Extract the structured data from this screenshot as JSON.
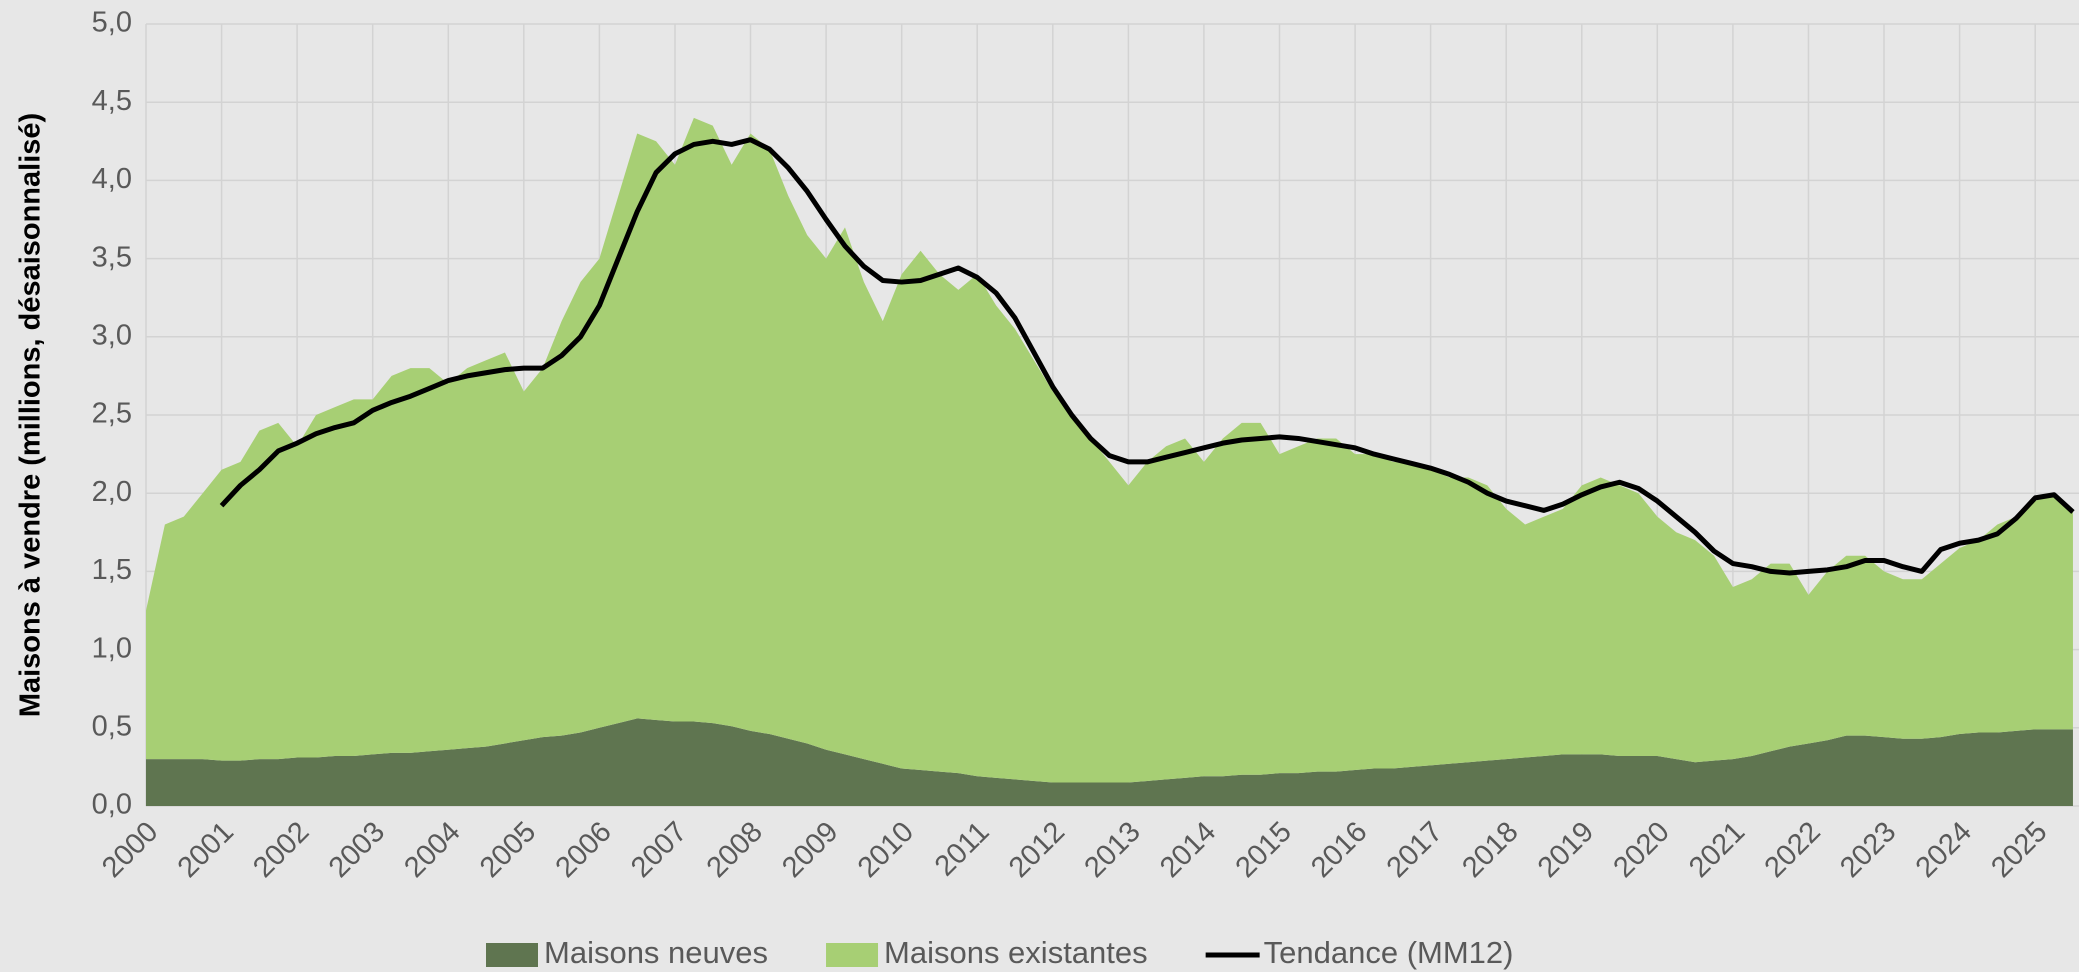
{
  "chart_data": {
    "type": "area",
    "stacked": true,
    "ylabel": "Maisons à vendre (millions, désaisonnalisé)",
    "x": [
      2000,
      2000.25,
      2000.5,
      2000.75,
      2001,
      2001.25,
      2001.5,
      2001.75,
      2002,
      2002.25,
      2002.5,
      2002.75,
      2003,
      2003.25,
      2003.5,
      2003.75,
      2004,
      2004.25,
      2004.5,
      2004.75,
      2005,
      2005.25,
      2005.5,
      2005.75,
      2006,
      2006.25,
      2006.5,
      2006.75,
      2007,
      2007.25,
      2007.5,
      2007.75,
      2008,
      2008.25,
      2008.5,
      2008.75,
      2009,
      2009.25,
      2009.5,
      2009.75,
      2010,
      2010.25,
      2010.5,
      2010.75,
      2011,
      2011.25,
      2011.5,
      2011.75,
      2012,
      2012.25,
      2012.5,
      2012.75,
      2013,
      2013.25,
      2013.5,
      2013.75,
      2014,
      2014.25,
      2014.5,
      2014.75,
      2015,
      2015.25,
      2015.5,
      2015.75,
      2016,
      2016.25,
      2016.5,
      2016.75,
      2017,
      2017.25,
      2017.5,
      2017.75,
      2018,
      2018.25,
      2018.5,
      2018.75,
      2019,
      2019.25,
      2019.5,
      2019.75,
      2020,
      2020.25,
      2020.5,
      2020.75,
      2021,
      2021.25,
      2021.5,
      2021.75,
      2022,
      2022.25,
      2022.5,
      2022.75,
      2023,
      2023.25,
      2023.5,
      2023.75,
      2024,
      2024.25,
      2024.5,
      2024.75,
      2025,
      2025.25,
      2025.5
    ],
    "series": [
      {
        "name": "Maisons neuves",
        "color": "#5f7550",
        "values": [
          0.3,
          0.3,
          0.3,
          0.3,
          0.29,
          0.29,
          0.3,
          0.3,
          0.31,
          0.31,
          0.32,
          0.32,
          0.33,
          0.34,
          0.34,
          0.35,
          0.36,
          0.37,
          0.38,
          0.4,
          0.42,
          0.44,
          0.45,
          0.47,
          0.5,
          0.53,
          0.56,
          0.55,
          0.54,
          0.54,
          0.53,
          0.51,
          0.48,
          0.46,
          0.43,
          0.4,
          0.36,
          0.33,
          0.3,
          0.27,
          0.24,
          0.23,
          0.22,
          0.21,
          0.19,
          0.18,
          0.17,
          0.16,
          0.15,
          0.15,
          0.15,
          0.15,
          0.15,
          0.16,
          0.17,
          0.18,
          0.19,
          0.19,
          0.2,
          0.2,
          0.21,
          0.21,
          0.22,
          0.22,
          0.23,
          0.24,
          0.24,
          0.25,
          0.26,
          0.27,
          0.28,
          0.29,
          0.3,
          0.31,
          0.32,
          0.33,
          0.33,
          0.33,
          0.32,
          0.32,
          0.32,
          0.3,
          0.28,
          0.29,
          0.3,
          0.32,
          0.35,
          0.38,
          0.4,
          0.42,
          0.45,
          0.45,
          0.44,
          0.43,
          0.43,
          0.44,
          0.46,
          0.47,
          0.47,
          0.48,
          0.49,
          0.49,
          0.49
        ]
      },
      {
        "name": "Maisons existantes",
        "color": "#a7cf74",
        "values": [
          0.95,
          1.5,
          1.55,
          1.7,
          1.86,
          1.91,
          2.1,
          2.15,
          1.99,
          2.19,
          2.23,
          2.28,
          2.27,
          2.41,
          2.46,
          2.45,
          2.34,
          2.43,
          2.47,
          2.5,
          2.23,
          2.36,
          2.65,
          2.88,
          3.0,
          3.37,
          3.74,
          3.7,
          3.56,
          3.86,
          3.82,
          3.59,
          3.82,
          3.74,
          3.47,
          3.25,
          3.14,
          3.37,
          3.05,
          2.83,
          3.16,
          3.32,
          3.18,
          3.09,
          3.21,
          3.02,
          2.88,
          2.69,
          2.5,
          2.35,
          2.2,
          2.05,
          1.9,
          2.04,
          2.13,
          2.17,
          2.01,
          2.16,
          2.25,
          2.25,
          2.04,
          2.09,
          2.13,
          2.13,
          2.02,
          2.01,
          1.96,
          1.95,
          1.89,
          1.83,
          1.82,
          1.76,
          1.6,
          1.49,
          1.53,
          1.57,
          1.72,
          1.77,
          1.73,
          1.68,
          1.53,
          1.45,
          1.42,
          1.31,
          1.1,
          1.13,
          1.2,
          1.17,
          0.95,
          1.08,
          1.15,
          1.15,
          1.06,
          1.02,
          1.02,
          1.11,
          1.19,
          1.23,
          1.33,
          1.37,
          1.46,
          1.51,
          1.41
        ]
      },
      {
        "name": "Tendance (MM12)",
        "color": "#000000",
        "type": "line",
        "values": [
          null,
          null,
          null,
          null,
          1.92,
          2.05,
          2.15,
          2.27,
          2.32,
          2.38,
          2.42,
          2.45,
          2.53,
          2.58,
          2.62,
          2.67,
          2.72,
          2.75,
          2.77,
          2.79,
          2.8,
          2.8,
          2.88,
          3.0,
          3.2,
          3.5,
          3.8,
          4.05,
          4.17,
          4.23,
          4.25,
          4.23,
          4.26,
          4.2,
          4.08,
          3.93,
          3.75,
          3.58,
          3.45,
          3.36,
          3.35,
          3.36,
          3.4,
          3.44,
          3.38,
          3.28,
          3.12,
          2.9,
          2.68,
          2.5,
          2.35,
          2.24,
          2.2,
          2.2,
          2.23,
          2.26,
          2.29,
          2.32,
          2.34,
          2.35,
          2.36,
          2.35,
          2.33,
          2.31,
          2.29,
          2.25,
          2.22,
          2.19,
          2.16,
          2.12,
          2.07,
          2.0,
          1.95,
          1.92,
          1.89,
          1.93,
          1.99,
          2.04,
          2.07,
          2.03,
          1.95,
          1.85,
          1.75,
          1.63,
          1.55,
          1.53,
          1.5,
          1.49,
          1.5,
          1.51,
          1.53,
          1.57,
          1.57,
          1.53,
          1.5,
          1.64,
          1.68,
          1.7,
          1.74,
          1.84,
          1.97,
          1.99,
          1.88
        ]
      }
    ],
    "xlim": [
      2000,
      2025.58
    ],
    "xticks": [
      2000,
      2001,
      2002,
      2003,
      2004,
      2005,
      2006,
      2007,
      2008,
      2009,
      2010,
      2011,
      2012,
      2013,
      2014,
      2015,
      2016,
      2017,
      2018,
      2019,
      2020,
      2021,
      2022,
      2023,
      2024,
      2025
    ],
    "ylim": [
      0,
      5
    ],
    "yticks": [
      {
        "value": 0,
        "label": "0,0"
      },
      {
        "value": 0.5,
        "label": "0,5"
      },
      {
        "value": 1,
        "label": "1,0"
      },
      {
        "value": 1.5,
        "label": "1,5"
      },
      {
        "value": 2,
        "label": "2,0"
      },
      {
        "value": 2.5,
        "label": "2,5"
      },
      {
        "value": 3,
        "label": "3,0"
      },
      {
        "value": 3.5,
        "label": "3,5"
      },
      {
        "value": 4,
        "label": "4,0"
      },
      {
        "value": 4.5,
        "label": "4,5"
      },
      {
        "value": 5,
        "label": "5,0"
      }
    ],
    "grid": true,
    "legend": "bottom"
  }
}
